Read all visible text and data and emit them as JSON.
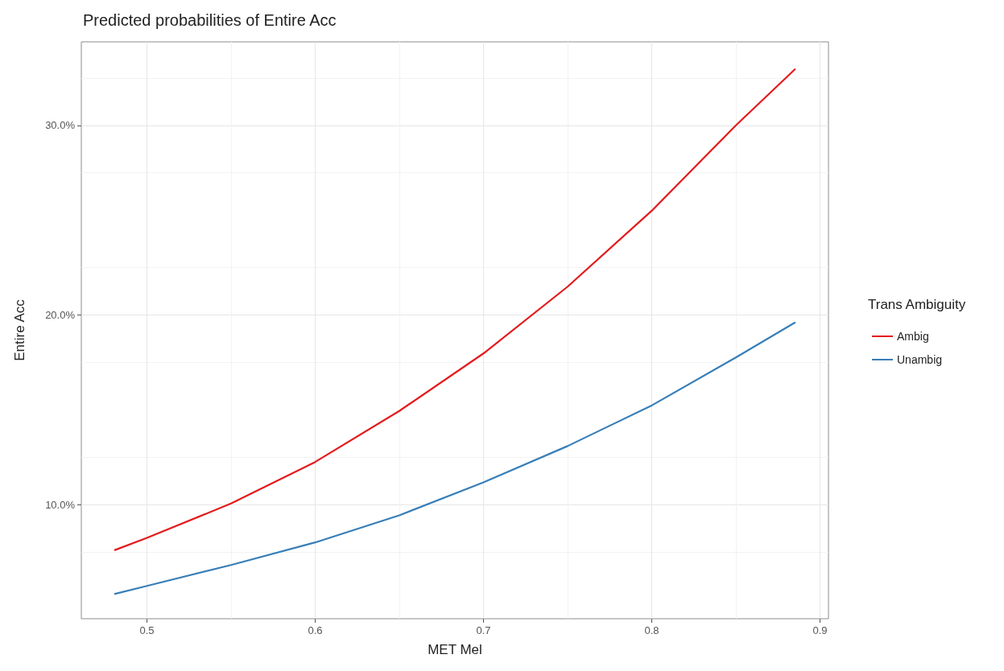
{
  "chart_data": {
    "type": "line",
    "title": "Predicted probabilities of Entire Acc",
    "xlabel": "MET Mel",
    "ylabel": "Entire Acc",
    "legend_title": "Trans Ambiguity",
    "legend": "right",
    "grid": true,
    "marker": "none",
    "line_style": "solid",
    "xlim": [
      0.461,
      0.905
    ],
    "ylim": [
      4.0,
      34.4
    ],
    "xticks": [
      0.5,
      0.6,
      0.7,
      0.8,
      0.9
    ],
    "yticks": [
      {
        "value": 10,
        "label": "10.0%"
      },
      {
        "value": 20,
        "label": "20.0%"
      },
      {
        "value": 30,
        "label": "30.0%"
      }
    ],
    "series": [
      {
        "name": "Ambig",
        "color": "#e41a1c",
        "x": [
          0.481,
          0.5,
          0.55,
          0.6,
          0.65,
          0.7,
          0.75,
          0.8,
          0.85,
          0.885
        ],
        "values": [
          7.62,
          8.26,
          10.07,
          12.26,
          14.95,
          17.98,
          21.5,
          25.5,
          30.0,
          32.95
        ]
      },
      {
        "name": "Unambig",
        "color": "#377eb8",
        "x": [
          0.481,
          0.5,
          0.55,
          0.6,
          0.65,
          0.7,
          0.75,
          0.8,
          0.85,
          0.885
        ],
        "values": [
          5.31,
          5.73,
          6.83,
          8.02,
          9.45,
          11.19,
          13.1,
          15.24,
          17.77,
          19.6
        ]
      }
    ]
  }
}
